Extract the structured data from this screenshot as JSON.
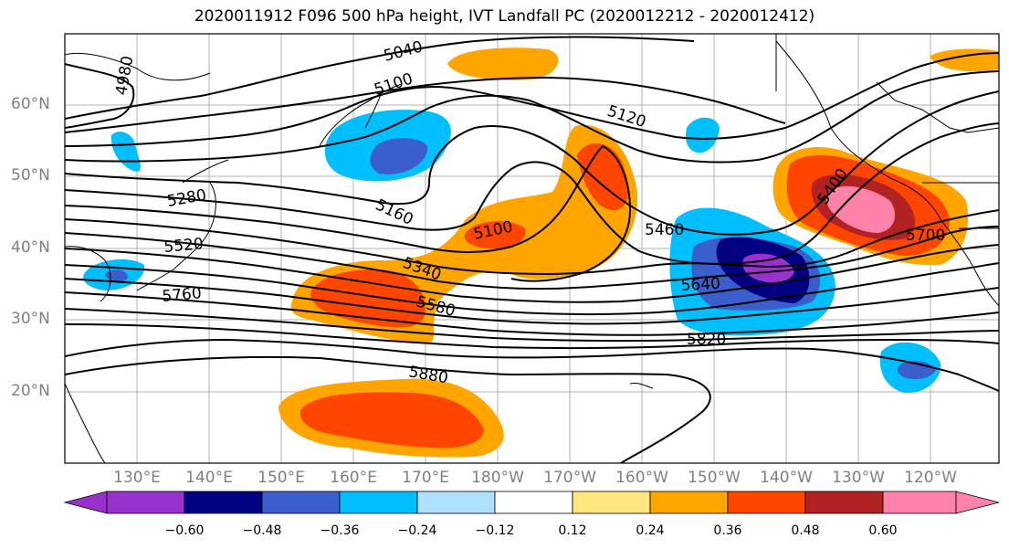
{
  "title": "2020011912 F096 500 hPa height, IVT Landfall PC (2020012212 - 2020012412)",
  "latitude_labels": [
    "60°N",
    "50°N",
    "40°N",
    "30°N",
    "20°N"
  ],
  "longitude_labels": [
    "130°E",
    "140°E",
    "150°E",
    "160°E",
    "170°E",
    "180°W",
    "170°W",
    "160°W",
    "150°W",
    "140°W",
    "130°W",
    "120°W"
  ],
  "contour_labels": [
    "4980",
    "5040",
    "5100",
    "5120",
    "5280",
    "5160",
    "5100",
    "5400",
    "5460",
    "5520",
    "5340",
    "5580",
    "5640",
    "5700",
    "5760",
    "5820",
    "5880"
  ],
  "colorbar": {
    "tick_labels": [
      "−0.60",
      "−0.48",
      "−0.36",
      "−0.24",
      "−0.12",
      "0.12",
      "0.24",
      "0.36",
      "0.48",
      "0.60"
    ],
    "colors": [
      "#9932cc",
      "#000080",
      "#3a5fcd",
      "#00bfff",
      "#b0e0ff",
      "#ffffff",
      "#ffe680",
      "#ffa500",
      "#ff4500",
      "#b22222",
      "#ff82ab"
    ]
  },
  "colors": {
    "strong_negative": "#9932cc",
    "negative": "#3a5fcd",
    "weak_negative": "#00bfff",
    "weak_positive": "#ffa500",
    "positive": "#ff4500",
    "strong_positive": "#ff82ab"
  }
}
